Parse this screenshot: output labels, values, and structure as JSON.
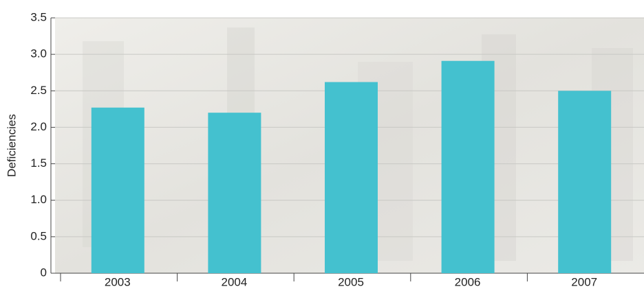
{
  "chart_data": {
    "type": "bar",
    "y_label": "Deficiencies",
    "categories": [
      "2003",
      "2004",
      "2005",
      "2006",
      "2007"
    ],
    "values": [
      2.27,
      2.2,
      2.62,
      2.91,
      2.5
    ],
    "color": "#44c1cf",
    "ylim": [
      0,
      3.5
    ],
    "yticks": [
      0,
      0.5,
      {
        "value": 1,
        "label": "1.0"
      },
      1.5,
      {
        "value": 2,
        "label": "2.0"
      },
      2.5,
      {
        "value": 3,
        "label": "3.0"
      },
      3.5
    ],
    "grid": true
  }
}
